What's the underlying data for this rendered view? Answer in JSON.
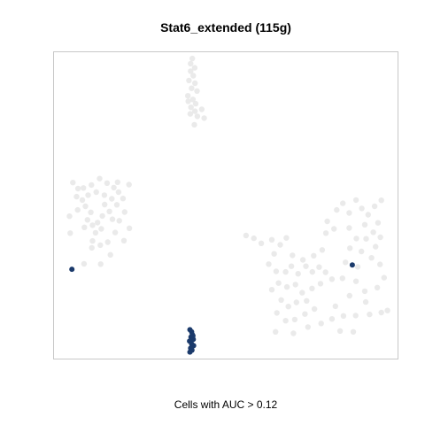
{
  "figure": {
    "title": "Stat6_extended (115g)",
    "caption": "Cells with AUC > 0.12"
  },
  "colors": {
    "highlight": "#1b3a6b",
    "background_points": "#e6e6e6",
    "panel_border": "#c8c8c8"
  },
  "chart_data": {
    "type": "scatter",
    "title": "Stat6_extended (115g)",
    "xlabel": "",
    "ylabel": "",
    "axes_visible": false,
    "grid": false,
    "legend": "none",
    "note": "t-SNE style embedding; axis ranges unlabeled",
    "xlim": [
      0,
      100
    ],
    "ylim": [
      0,
      100
    ],
    "series": [
      {
        "role": "background",
        "values": [
          [
            40.8,
            95.7
          ],
          [
            39.6,
            94.6
          ],
          [
            40.4,
            93.1
          ],
          [
            39.1,
            91.5
          ],
          [
            40.9,
            90.6
          ],
          [
            39.9,
            88.9
          ],
          [
            41.5,
            88.0
          ],
          [
            38.8,
            86.4
          ],
          [
            40.3,
            85.2
          ],
          [
            41.1,
            83.8
          ],
          [
            39.7,
            82.6
          ],
          [
            40.9,
            81.3
          ],
          [
            41.6,
            79.6
          ],
          [
            42.9,
            81.9
          ],
          [
            43.6,
            79.0
          ],
          [
            40.7,
            76.8
          ],
          [
            39.6,
            97.1
          ],
          [
            40.1,
            98.8
          ],
          [
            38.9,
            84.6
          ],
          [
            39.5,
            80.4
          ],
          [
            4.8,
            57.6
          ],
          [
            6.3,
            55.6
          ],
          [
            5.9,
            52.9
          ],
          [
            7.6,
            51.8
          ],
          [
            8.5,
            49.7
          ],
          [
            10.1,
            47.7
          ],
          [
            9.1,
            45.2
          ],
          [
            10.6,
            43.4
          ],
          [
            11.5,
            40.9
          ],
          [
            13.2,
            42.2
          ],
          [
            12.1,
            44.3
          ],
          [
            13.5,
            46.5
          ],
          [
            15.6,
            48.0
          ],
          [
            14.2,
            50.3
          ],
          [
            16.3,
            52.2
          ],
          [
            17.8,
            50.2
          ],
          [
            19.6,
            52.3
          ],
          [
            18.3,
            54.4
          ],
          [
            16.9,
            55.9
          ],
          [
            14.9,
            57.4
          ],
          [
            12.7,
            58.9
          ],
          [
            10.3,
            56.8
          ],
          [
            11.7,
            54.4
          ],
          [
            9.3,
            53.4
          ],
          [
            7.9,
            55.8
          ],
          [
            6.2,
            48.5
          ],
          [
            8.2,
            42.7
          ],
          [
            10.6,
            38.2
          ],
          [
            12.9,
            36.8
          ],
          [
            15.1,
            37.8
          ],
          [
            17.3,
            41.0
          ],
          [
            18.5,
            44.9
          ],
          [
            20.1,
            47.8
          ],
          [
            21.5,
            42.4
          ],
          [
            19.9,
            38.3
          ],
          [
            15.9,
            33.6
          ],
          [
            10.4,
            35.9
          ],
          [
            8.1,
            30.6
          ],
          [
            13.0,
            30.5
          ],
          [
            4.0,
            40.8
          ],
          [
            3.8,
            46.4
          ],
          [
            18.0,
            57.7
          ],
          [
            21.4,
            56.9
          ],
          [
            14.1,
            53.4
          ],
          [
            16.5,
            45.4
          ],
          [
            56.0,
            40.0
          ],
          [
            58.3,
            39.1
          ],
          [
            60.5,
            37.4
          ],
          [
            63.6,
            38.6
          ],
          [
            66.1,
            36.9
          ],
          [
            67.9,
            39.2
          ],
          [
            64.3,
            33.9
          ],
          [
            62.7,
            30.5
          ],
          [
            64.9,
            28.1
          ],
          [
            67.7,
            27.9
          ],
          [
            69.4,
            29.8
          ],
          [
            71.4,
            27.3
          ],
          [
            73.7,
            29.8
          ],
          [
            75.6,
            27.9
          ],
          [
            77.6,
            29.5
          ],
          [
            79.5,
            27.8
          ],
          [
            81.4,
            25.5
          ],
          [
            78.0,
            24.0
          ],
          [
            75.5,
            22.4
          ],
          [
            72.6,
            21.0
          ],
          [
            70.6,
            23.7
          ],
          [
            68.1,
            22.9
          ],
          [
            65.6,
            24.2
          ],
          [
            63.6,
            22.0
          ],
          [
            66.4,
            18.6
          ],
          [
            68.5,
            16.4
          ],
          [
            70.9,
            17.8
          ],
          [
            73.9,
            18.3
          ],
          [
            76.2,
            15.6
          ],
          [
            73.4,
            13.9
          ],
          [
            70.4,
            12.1
          ],
          [
            67.7,
            11.7
          ],
          [
            65.1,
            14.3
          ],
          [
            64.7,
            8.0
          ],
          [
            70.0,
            7.5
          ],
          [
            74.3,
            9.6
          ],
          [
            78.2,
            10.8
          ],
          [
            72.8,
            31.9
          ],
          [
            69.7,
            33.4
          ],
          [
            76.0,
            33.3
          ],
          [
            79.6,
            40.8
          ],
          [
            82.0,
            42.2
          ],
          [
            80.0,
            44.7
          ],
          [
            82.8,
            48.5
          ],
          [
            84.6,
            50.7
          ],
          [
            86.5,
            47.5
          ],
          [
            88.5,
            51.8
          ],
          [
            90.2,
            49.0
          ],
          [
            92.1,
            46.9
          ],
          [
            94.0,
            49.7
          ],
          [
            96.0,
            51.7
          ],
          [
            95.0,
            44.2
          ],
          [
            93.6,
            41.1
          ],
          [
            95.7,
            39.4
          ],
          [
            94.3,
            36.3
          ],
          [
            93.1,
            32.6
          ],
          [
            95.6,
            30.4
          ],
          [
            96.8,
            26.0
          ],
          [
            94.8,
            22.7
          ],
          [
            91.1,
            21.5
          ],
          [
            88.5,
            24.8
          ],
          [
            89.0,
            29.6
          ],
          [
            90.1,
            34.7
          ],
          [
            88.6,
            39.0
          ],
          [
            86.5,
            42.5
          ],
          [
            91.1,
            43.6
          ],
          [
            91.5,
            38.9
          ],
          [
            86.7,
            35.8
          ],
          [
            85.4,
            31.1
          ],
          [
            84.5,
            25.8
          ],
          [
            86.6,
            20.0
          ],
          [
            82.4,
            16.5
          ],
          [
            81.4,
            12.3
          ],
          [
            84.8,
            13.3
          ],
          [
            88.4,
            13.4
          ],
          [
            92.5,
            13.8
          ],
          [
            96.0,
            14.4
          ],
          [
            97.8,
            15.1
          ],
          [
            91.4,
            17.9
          ],
          [
            83.8,
            8.3
          ],
          [
            87.7,
            8.0
          ],
          [
            78.5,
            35.2
          ]
        ]
      },
      {
        "role": "Cells with AUC > 0.12",
        "values": [
          [
            4.5,
            28.8
          ],
          [
            87.4,
            30.2
          ],
          [
            39.4,
            8.7
          ],
          [
            39.9,
            8.0
          ],
          [
            40.1,
            7.1
          ],
          [
            39.7,
            6.3
          ],
          [
            40.4,
            5.5
          ],
          [
            39.3,
            4.9
          ],
          [
            39.9,
            4.0
          ],
          [
            40.5,
            3.4
          ],
          [
            39.6,
            2.6
          ],
          [
            40.0,
            1.9
          ],
          [
            39.4,
            1.3
          ],
          [
            40.3,
            6.7
          ],
          [
            39.9,
            2.2
          ]
        ]
      }
    ]
  }
}
